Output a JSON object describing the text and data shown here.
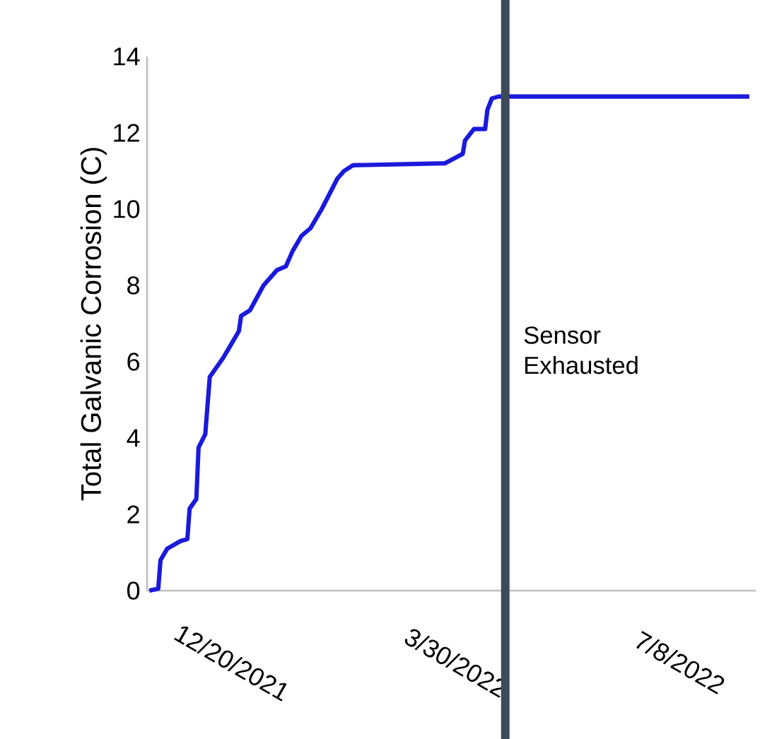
{
  "chart_data": {
    "type": "line",
    "ylabel": "Total Galvanic Corrosion (C)",
    "x": [
      "2021-11-13",
      "2021-11-17",
      "2021-11-18",
      "2021-11-21",
      "2021-11-27",
      "2021-11-30",
      "2021-12-01",
      "2021-12-04",
      "2021-12-05",
      "2021-12-08",
      "2021-12-10",
      "2021-12-16",
      "2021-12-19",
      "2021-12-23",
      "2021-12-24",
      "2021-12-28",
      "2022-01-03",
      "2022-01-09",
      "2022-01-13",
      "2022-01-16",
      "2022-01-20",
      "2022-01-24",
      "2022-01-29",
      "2022-02-05",
      "2022-02-08",
      "2022-02-12",
      "2022-03-25",
      "2022-04-02",
      "2022-04-03",
      "2022-04-07",
      "2022-04-12",
      "2022-04-13",
      "2022-04-15",
      "2022-04-18",
      "2022-08-08"
    ],
    "series": [
      {
        "color": "#1a1adb",
        "values": [
          0,
          0.05,
          0.8,
          1.1,
          1.3,
          1.35,
          2.15,
          2.4,
          3.75,
          4.1,
          5.6,
          6.1,
          6.4,
          6.8,
          7.2,
          7.35,
          8.0,
          8.4,
          8.5,
          8.9,
          9.3,
          9.5,
          10.0,
          10.8,
          11.0,
          11.15,
          11.2,
          11.45,
          11.8,
          12.1,
          12.1,
          12.6,
          12.9,
          12.95,
          12.95
        ]
      }
    ],
    "xlim": [
      "2021-11-12",
      "2022-08-11"
    ],
    "xticks": [
      {
        "value": "2021-12-20",
        "label": "12/20/2021"
      },
      {
        "value": "2022-03-30",
        "label": "3/30/2022"
      },
      {
        "value": "2022-07-08",
        "label": "7/8/2022"
      }
    ],
    "ylim": [
      0,
      14
    ],
    "yticks": [
      0,
      2,
      4,
      6,
      8,
      10,
      12,
      14
    ],
    "ref_lines": [
      {
        "axis": "x",
        "value": "2022-04-21",
        "label": "Sensor Exhausted",
        "color": "#3c4a5a"
      }
    ],
    "marker": "none",
    "line_style": "solid"
  }
}
